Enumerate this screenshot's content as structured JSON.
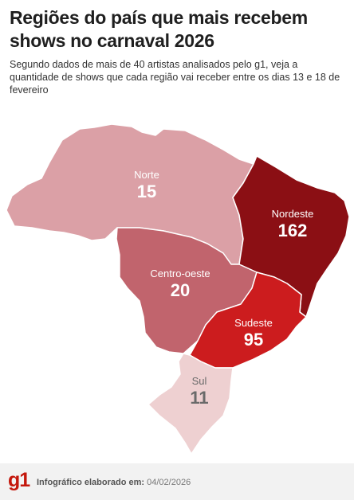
{
  "title": "Regiões do país que mais recebem shows no carnaval 2026",
  "subtitle": "Segundo dados de mais de 40 artistas analisados pelo g1, veja a quantidade de shows que cada região vai receber entre os dias 13 e 18 de fevereiro",
  "regions": [
    {
      "name": "Norte",
      "shows": "15",
      "color": "#dba0a6"
    },
    {
      "name": "Nordeste",
      "shows": "162",
      "color": "#8b0f14"
    },
    {
      "name": "Centro-oeste",
      "shows": "20",
      "color": "#c1646d"
    },
    {
      "name": "Sudeste",
      "shows": "95",
      "color": "#cc1c1e"
    },
    {
      "name": "Sul",
      "shows": "11",
      "color": "#eed0d1"
    }
  ],
  "footer": {
    "logo": "g1",
    "credit_label": "Infográfico elaborado em:",
    "date": "04/02/2026"
  }
}
